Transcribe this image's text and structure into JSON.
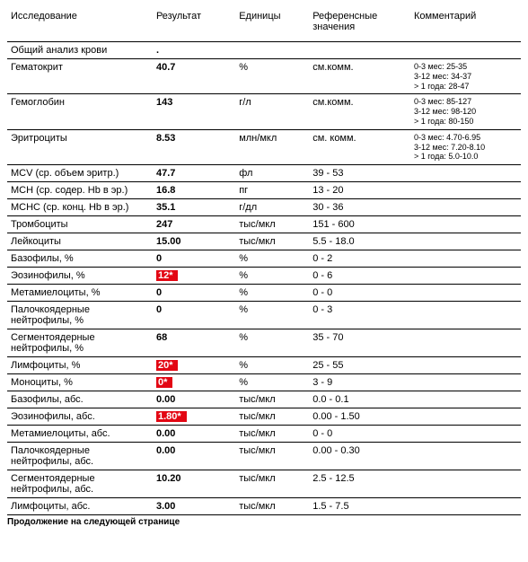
{
  "headers": {
    "test": "Исследование",
    "result": "Результат",
    "unit": "Единицы",
    "ref": "Референсные значения",
    "comment": "Комментарий"
  },
  "rows": [
    {
      "test": "Общий анализ крови",
      "result": ".",
      "unit": "",
      "ref": "",
      "comment": "",
      "abn": false
    },
    {
      "test": "Гематокрит",
      "result": "40.7",
      "unit": "%",
      "ref": "см.комм.",
      "comment": "0-3 мес: 25-35\n3-12 мес: 34-37\n> 1 года: 28-47",
      "abn": false
    },
    {
      "test": "Гемоглобин",
      "result": "143",
      "unit": "г/л",
      "ref": "см.комм.",
      "comment": "0-3 мес: 85-127\n3-12 мес: 98-120\n> 1 года: 80-150",
      "abn": false
    },
    {
      "test": "Эритроциты",
      "result": "8.53",
      "unit": "млн/мкл",
      "ref": "см. комм.",
      "comment": "0-3 мес: 4.70-6.95\n3-12 мес: 7.20-8.10\n> 1 года: 5.0-10.0",
      "abn": false
    },
    {
      "test": "MCV (ср. объем эритр.)",
      "result": "47.7",
      "unit": "фл",
      "ref": "39 - 53",
      "comment": "",
      "abn": false
    },
    {
      "test": "MCH (ср. содер. Hb в эр.)",
      "result": "16.8",
      "unit": "пг",
      "ref": "13 - 20",
      "comment": "",
      "abn": false
    },
    {
      "test": "MCHC (ср. конц. Hb в эр.)",
      "result": "35.1",
      "unit": "г/дл",
      "ref": "30 - 36",
      "comment": "",
      "abn": false
    },
    {
      "test": "Тромбоциты",
      "result": "247",
      "unit": "тыс/мкл",
      "ref": "151 - 600",
      "comment": "",
      "abn": false
    },
    {
      "test": "Лейкоциты",
      "result": "15.00",
      "unit": "тыс/мкл",
      "ref": "5.5 - 18.0",
      "comment": "",
      "abn": false
    },
    {
      "test": "Базофилы, %",
      "result": "0",
      "unit": "%",
      "ref": "0 - 2",
      "comment": "",
      "abn": false
    },
    {
      "test": "Эозинофилы, %",
      "result": "12*",
      "unit": "%",
      "ref": "0 - 6",
      "comment": "",
      "abn": true
    },
    {
      "test": "Метамиелоциты, %",
      "result": "0",
      "unit": "%",
      "ref": "0 - 0",
      "comment": "",
      "abn": false
    },
    {
      "test": "Палочкоядерные нейтрофилы, %",
      "result": "0",
      "unit": "%",
      "ref": "0 - 3",
      "comment": "",
      "abn": false
    },
    {
      "test": "Сегментоядерные нейтрофилы, %",
      "result": "68",
      "unit": "%",
      "ref": "35 - 70",
      "comment": "",
      "abn": false
    },
    {
      "test": "Лимфоциты, %",
      "result": "20*",
      "unit": "%",
      "ref": "25 - 55",
      "comment": "",
      "abn": true
    },
    {
      "test": "Моноциты, %",
      "result": "0*",
      "unit": "%",
      "ref": "3 - 9",
      "comment": "",
      "abn": true
    },
    {
      "test": "Базофилы, абс.",
      "result": "0.00",
      "unit": "тыс/мкл",
      "ref": "0.0 - 0.1",
      "comment": "",
      "abn": false
    },
    {
      "test": "Эозинофилы, абс.",
      "result": "1.80*",
      "unit": "тыс/мкл",
      "ref": "0.00 - 1.50",
      "comment": "",
      "abn": true
    },
    {
      "test": "Метамиелоциты, абс.",
      "result": "0.00",
      "unit": "тыс/мкл",
      "ref": "0 - 0",
      "comment": "",
      "abn": false
    },
    {
      "test": "Палочкоядерные нейтрофилы, абс.",
      "result": "0.00",
      "unit": "тыс/мкл",
      "ref": "0.00 - 0.30",
      "comment": "",
      "abn": false
    },
    {
      "test": "Сегментоядерные нейтрофилы, абс.",
      "result": "10.20",
      "unit": "тыс/мкл",
      "ref": "2.5 - 12.5",
      "comment": "",
      "abn": false
    },
    {
      "test": "Лимфоциты, абс.",
      "result": "3.00",
      "unit": "тыс/мкл",
      "ref": "1.5 - 7.5",
      "comment": "",
      "abn": false
    }
  ],
  "footer": "Продолжение на следующей странице",
  "style": {
    "abn_bg": "#e30613",
    "abn_fg": "#ffffff",
    "border_color": "#000000",
    "font_size_body": 11,
    "font_size_comment": 9
  }
}
